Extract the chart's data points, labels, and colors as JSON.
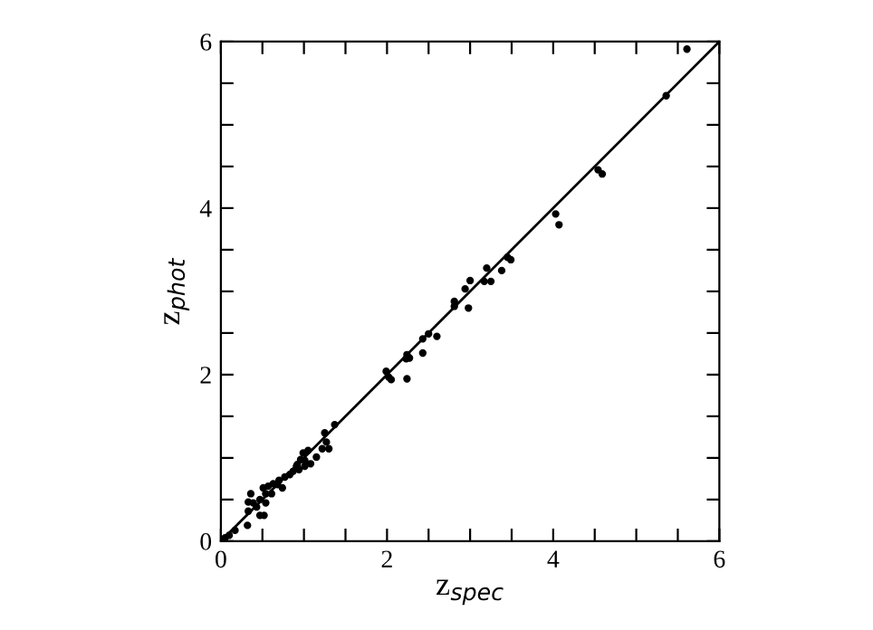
{
  "chart_data": {
    "type": "scatter",
    "xlabel": "z$_{spec}$",
    "ylabel": "z$_{phot}$",
    "xlim": [
      0,
      6
    ],
    "ylim": [
      0,
      6
    ],
    "xticks": [
      0,
      {
        "value": 0.5,
        "label": null
      },
      {
        "value": 1,
        "label": null
      },
      {
        "value": 1.5,
        "label": null
      },
      2,
      {
        "value": 2.5,
        "label": null
      },
      {
        "value": 3,
        "label": null
      },
      {
        "value": 3.5,
        "label": null
      },
      4,
      {
        "value": 4.5,
        "label": null
      },
      {
        "value": 5,
        "label": null
      },
      {
        "value": 5.5,
        "label": null
      },
      6
    ],
    "yticks": [
      0,
      {
        "value": 0.5,
        "label": null
      },
      {
        "value": 1,
        "label": null
      },
      {
        "value": 1.5,
        "label": null
      },
      2,
      {
        "value": 2.5,
        "label": null
      },
      {
        "value": 3,
        "label": null
      },
      {
        "value": 3.5,
        "label": null
      },
      4,
      {
        "value": 4.5,
        "label": null
      },
      {
        "value": 5,
        "label": null
      },
      {
        "value": 5.5,
        "label": null
      },
      6
    ],
    "grid": false,
    "legend": false,
    "series": [
      {
        "marker": "circle",
        "color": "#000000",
        "x": [
          5.61,
          5.36,
          4.54,
          4.59,
          4.03,
          4.07,
          3.45,
          3.49,
          3.38,
          3.2,
          3.17,
          3.25,
          3.0,
          2.94,
          2.98,
          2.81,
          2.81,
          2.5,
          2.6,
          2.43,
          2.43,
          2.24,
          2.27,
          2.23,
          2.24,
          1.99,
          2.02,
          2.05,
          1.37,
          1.25,
          1.27,
          1.3,
          1.22,
          1.15,
          1.08,
          1.05,
          0.99,
          0.96,
          0.92,
          0.87,
          0.83,
          0.77,
          0.7,
          0.63,
          0.57,
          0.51,
          0.54,
          0.47,
          0.39,
          0.33,
          0.33,
          0.47,
          0.52,
          0.32,
          0.17,
          0.1,
          0.05,
          0.61,
          0.68,
          0.94,
          1.01,
          1.01,
          0.91,
          0.54,
          0.43,
          0.36,
          0.74
        ],
        "values": [
          5.91,
          5.35,
          4.46,
          4.41,
          3.93,
          3.8,
          3.41,
          3.38,
          3.25,
          3.28,
          3.12,
          3.12,
          3.13,
          3.03,
          2.8,
          2.88,
          2.82,
          2.49,
          2.46,
          2.43,
          2.26,
          2.24,
          2.2,
          2.19,
          1.95,
          2.04,
          1.97,
          1.94,
          1.4,
          1.3,
          1.19,
          1.11,
          1.11,
          1.01,
          0.93,
          1.09,
          1.06,
          0.98,
          0.92,
          0.84,
          0.8,
          0.77,
          0.73,
          0.69,
          0.66,
          0.64,
          0.57,
          0.5,
          0.46,
          0.47,
          0.36,
          0.31,
          0.31,
          0.19,
          0.13,
          0.07,
          0.04,
          0.57,
          0.68,
          0.86,
          0.9,
          0.97,
          0.9,
          0.46,
          0.41,
          0.57,
          0.64
        ]
      },
      {
        "type": "line",
        "color": "#000000",
        "x": [
          0,
          6
        ],
        "values": [
          0,
          6
        ],
        "line_style": "solid"
      }
    ]
  }
}
